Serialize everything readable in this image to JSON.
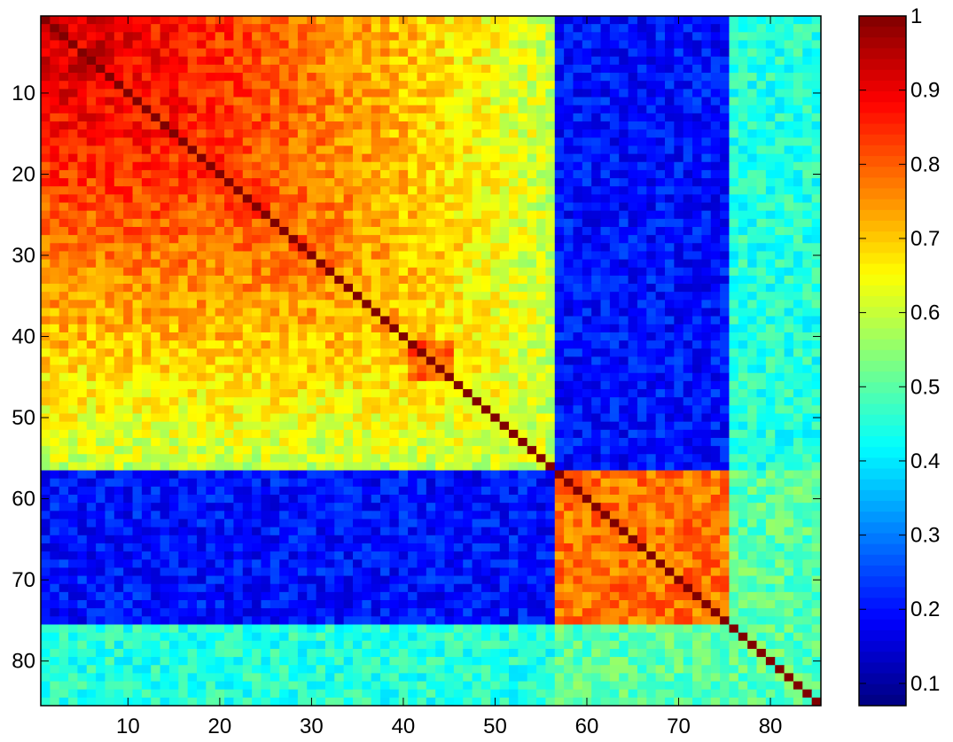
{
  "chart_data": {
    "type": "heatmap",
    "title": "",
    "xlabel": "",
    "ylabel": "",
    "rows": 85,
    "cols": 85,
    "x_range": [
      1,
      85
    ],
    "y_range": [
      1,
      85
    ],
    "y_axis_direction": "top-to-bottom",
    "x_ticks": [
      "10",
      "20",
      "30",
      "40",
      "50",
      "60",
      "70",
      "80"
    ],
    "y_ticks": [
      "10",
      "20",
      "30",
      "40",
      "50",
      "60",
      "70",
      "80"
    ],
    "colorbar": {
      "min": 0.07,
      "max": 1.0,
      "ticks": [
        "0.1",
        "0.2",
        "0.3",
        "0.4",
        "0.5",
        "0.6",
        "0.7",
        "0.8",
        "0.9",
        "1"
      ],
      "colormap": "jet"
    },
    "diagonal_value": 1.0,
    "blocks": [
      {
        "rows": [
          1,
          56
        ],
        "cols": [
          1,
          56
        ],
        "pattern": "decreasing-from-top-left",
        "corner_value": 0.93,
        "far_value": 0.6
      },
      {
        "rows": [
          1,
          56
        ],
        "cols": [
          57,
          75
        ],
        "value": 0.2
      },
      {
        "rows": [
          1,
          56
        ],
        "cols": [
          76,
          85
        ],
        "value": 0.45
      },
      {
        "rows": [
          57,
          75
        ],
        "cols": [
          1,
          56
        ],
        "value": 0.2
      },
      {
        "rows": [
          76,
          85
        ],
        "cols": [
          1,
          56
        ],
        "value": 0.45
      },
      {
        "rows": [
          57,
          75
        ],
        "cols": [
          57,
          75
        ],
        "value": 0.78
      },
      {
        "rows": [
          57,
          85
        ],
        "cols": [
          76,
          85
        ],
        "value": 0.5
      },
      {
        "rows": [
          76,
          85
        ],
        "cols": [
          57,
          85
        ],
        "value": 0.5
      },
      {
        "rows": [
          41,
          45
        ],
        "cols": [
          41,
          45
        ],
        "value": 0.8
      }
    ]
  }
}
